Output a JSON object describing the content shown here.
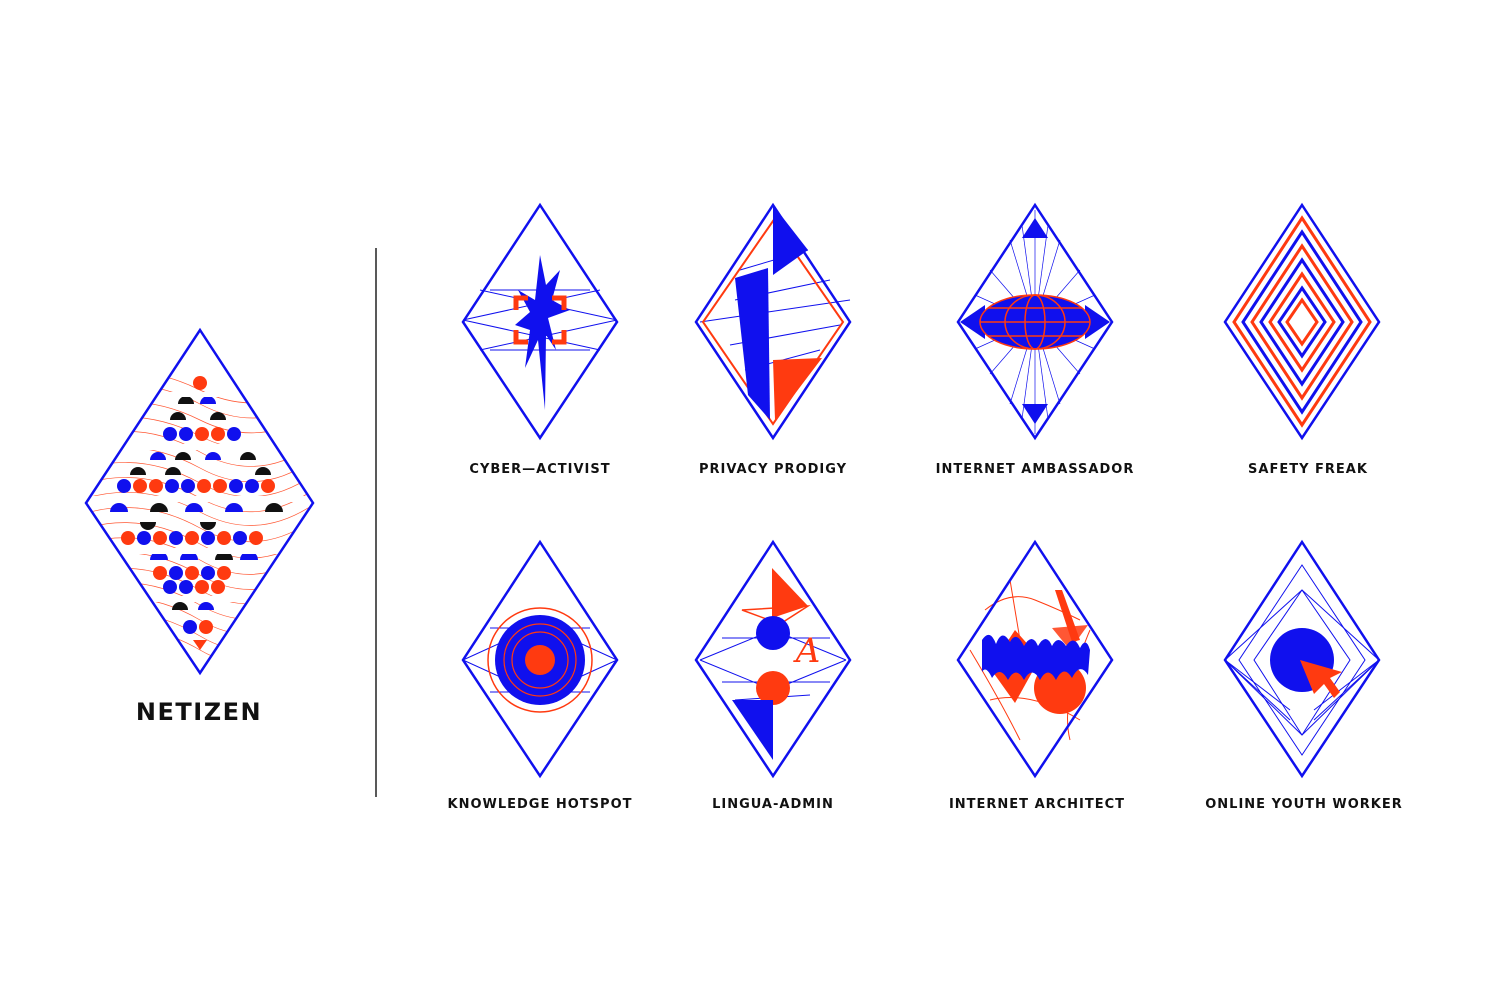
{
  "colors": {
    "blue": "#1010ee",
    "red": "#ff3a10",
    "black": "#111111",
    "line": "#222222"
  },
  "main_badge": {
    "title": "NETIZEN",
    "icon": "netizen-pattern-icon"
  },
  "badges": [
    {
      "label": "CYBER—ACTIVIST",
      "icon": "splatter-target-icon"
    },
    {
      "label": "PRIVACY PRODIGY",
      "icon": "folded-flag-icon"
    },
    {
      "label": "INTERNET AMBASSADOR",
      "icon": "globe-rays-icon"
    },
    {
      "label": "SAFETY FREAK",
      "icon": "nested-diamonds-icon"
    },
    {
      "label": "KNOWLEDGE HOTSPOT",
      "icon": "concentric-circles-icon"
    },
    {
      "label": "LINGUA-ADMIN",
      "icon": "letter-a-shapes-icon"
    },
    {
      "label": "INTERNET ARCHITECT",
      "icon": "chaotic-structure-icon"
    },
    {
      "label": "ONLINE YOUTH WORKER",
      "icon": "cursor-circle-icon"
    }
  ]
}
